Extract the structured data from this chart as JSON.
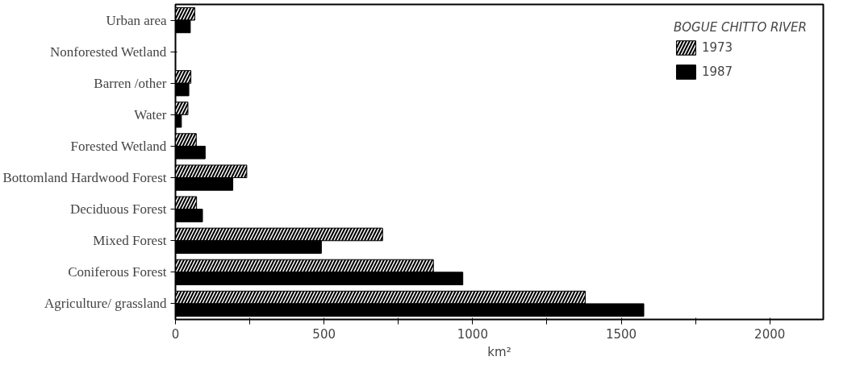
{
  "chart_data": {
    "type": "bar",
    "orientation": "horizontal",
    "legend_title": "BOGUE CHITTO RIVER",
    "xlabel": "km²",
    "categories": [
      "Urban area",
      "Nonforested Wetland",
      "Barren /other",
      "Water",
      "Forested Wetland",
      "Bottomland Hardwood Forest",
      "Deciduous Forest",
      "Mixed Forest",
      "Coniferous Forest",
      "Agriculture/ grassland"
    ],
    "series": [
      {
        "name": "1973",
        "color": "#000000",
        "values": [
          65,
          0,
          52,
          42,
          70,
          240,
          71,
          697,
          868,
          1379
        ]
      },
      {
        "name": "1987",
        "color": "#000000",
        "values": [
          50,
          0,
          45,
          20,
          100,
          193,
          91,
          491,
          967,
          1576
        ]
      }
    ],
    "xlim": [
      0,
      2180
    ],
    "xticks": [
      0,
      {
        "value": 250,
        "label": null
      },
      500,
      {
        "value": 750,
        "label": null
      },
      1000,
      {
        "value": 1250,
        "label": null
      },
      1500,
      {
        "value": 1750,
        "label": null
      },
      2000
    ],
    "grid": false,
    "legend": "top right"
  }
}
